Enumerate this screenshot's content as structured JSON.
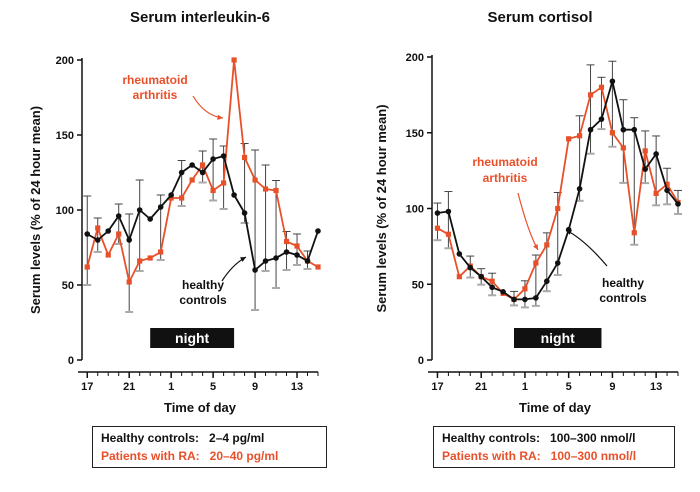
{
  "colors": {
    "ra": "#e8502a",
    "healthy": "#111111",
    "night_bar": "#111111",
    "error_bar": "#999999"
  },
  "chart_data": [
    {
      "type": "line",
      "title": "Serum interleukin-6",
      "ylabel": "Serum levels (% of 24 hour mean)",
      "xlabel": "Time of day",
      "ylim": [
        0,
        200
      ],
      "yticks": [
        0,
        50,
        100,
        150,
        200
      ],
      "xlim": [
        16.5,
        39
      ],
      "xticks": [
        17,
        21,
        25,
        29,
        33,
        37
      ],
      "xtick_labels": [
        "17",
        "21",
        "1",
        "5",
        "9",
        "13"
      ],
      "night": {
        "label": "night",
        "from": 23,
        "to": 31
      },
      "annotations": [
        {
          "text": "rheumatoid",
          "color": "ra"
        },
        {
          "text": "arthritis",
          "color": "ra"
        },
        {
          "text": "healthy",
          "color": "healthy"
        },
        {
          "text": "controls",
          "color": "healthy"
        }
      ],
      "series": [
        {
          "name": "rheumatoid arthritis",
          "color": "ra",
          "x": [
            17,
            18,
            19,
            20,
            21,
            22,
            23,
            24,
            25,
            26,
            27,
            28,
            29,
            30,
            31,
            32,
            33,
            34,
            35,
            36,
            37,
            38,
            39
          ],
          "y": [
            62,
            88,
            70,
            84,
            52,
            66,
            68,
            72,
            108,
            108,
            120,
            130,
            113,
            118,
            200,
            135,
            120,
            114,
            113,
            79,
            76,
            66,
            62
          ]
        },
        {
          "name": "healthy controls",
          "color": "healthy",
          "x": [
            17,
            18,
            19,
            20,
            21,
            22,
            23,
            24,
            25,
            26,
            27,
            28,
            29,
            30,
            31,
            32,
            33,
            34,
            35,
            36,
            37,
            38,
            39
          ],
          "y": [
            84,
            80,
            86,
            96,
            80,
            100,
            94,
            102,
            110,
            125,
            130,
            125,
            134,
            136,
            110,
            98,
            60,
            66,
            68,
            72,
            70,
            66,
            86
          ]
        }
      ]
    },
    {
      "type": "line",
      "title": "Serum cortisol",
      "ylabel": "Serum levels (% of 24 hour mean)",
      "xlabel": "Time of day",
      "ylim": [
        0,
        200
      ],
      "yticks": [
        0,
        50,
        100,
        150,
        200
      ],
      "xlim": [
        16.5,
        39
      ],
      "xticks": [
        17,
        21,
        25,
        29,
        33,
        37
      ],
      "xtick_labels": [
        "17",
        "21",
        "1",
        "5",
        "9",
        "13"
      ],
      "night": {
        "label": "night",
        "from": 24,
        "to": 32
      },
      "annotations": [
        {
          "text": "rheumatoid",
          "color": "ra"
        },
        {
          "text": "arthritis",
          "color": "ra"
        },
        {
          "text": "healthy",
          "color": "healthy"
        },
        {
          "text": "controls",
          "color": "healthy"
        }
      ],
      "series": [
        {
          "name": "rheumatoid arthritis",
          "color": "ra",
          "x": [
            17,
            18,
            19,
            20,
            21,
            22,
            23,
            24,
            25,
            26,
            27,
            28,
            29,
            30,
            31,
            32,
            33,
            34,
            35,
            36,
            37,
            38,
            39
          ],
          "y": [
            87,
            83,
            55,
            62,
            55,
            52,
            44,
            40,
            47,
            64,
            76,
            100,
            146,
            148,
            175,
            180,
            150,
            140,
            84,
            138,
            110,
            116,
            104
          ]
        },
        {
          "name": "healthy controls",
          "color": "healthy",
          "x": [
            17,
            18,
            19,
            20,
            21,
            22,
            23,
            24,
            25,
            26,
            27,
            28,
            29,
            30,
            31,
            32,
            33,
            34,
            35,
            36,
            37,
            38,
            39
          ],
          "y": [
            97,
            98,
            70,
            61,
            55,
            48,
            45,
            40,
            40,
            41,
            52,
            64,
            86,
            113,
            152,
            159,
            184,
            152,
            152,
            126,
            136,
            112,
            103
          ]
        }
      ]
    }
  ],
  "legends": [
    {
      "rows": [
        {
          "label": "Healthy controls:",
          "value": "2–4 pg/ml",
          "color": "healthy"
        },
        {
          "label": "Patients with RA:",
          "value": "20–40 pg/ml",
          "color": "ra"
        }
      ]
    },
    {
      "rows": [
        {
          "label": "Healthy controls:",
          "value": "100–300 nmol/l",
          "color": "healthy"
        },
        {
          "label": "Patients with RA:",
          "value": "100–300 nmol/l",
          "color": "ra"
        }
      ]
    }
  ]
}
